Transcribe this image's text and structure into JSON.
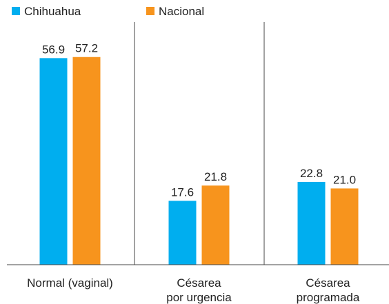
{
  "chart_data": {
    "type": "bar",
    "categories": [
      "Normal (vaginal)",
      "Césarea\npor urgencia",
      "Césarea\nprogramada"
    ],
    "series": [
      {
        "name": "Chihuahua",
        "color": "#00aeef",
        "values": [
          56.9,
          17.6,
          22.8
        ],
        "value_labels": [
          "56.9",
          "17.6",
          "22.8"
        ]
      },
      {
        "name": "Nacional",
        "color": "#f7941d",
        "values": [
          57.2,
          21.8,
          21.0
        ],
        "value_labels": [
          "57.2",
          "21.8",
          "21.0"
        ]
      }
    ],
    "ylim": [
      0,
      60
    ]
  }
}
